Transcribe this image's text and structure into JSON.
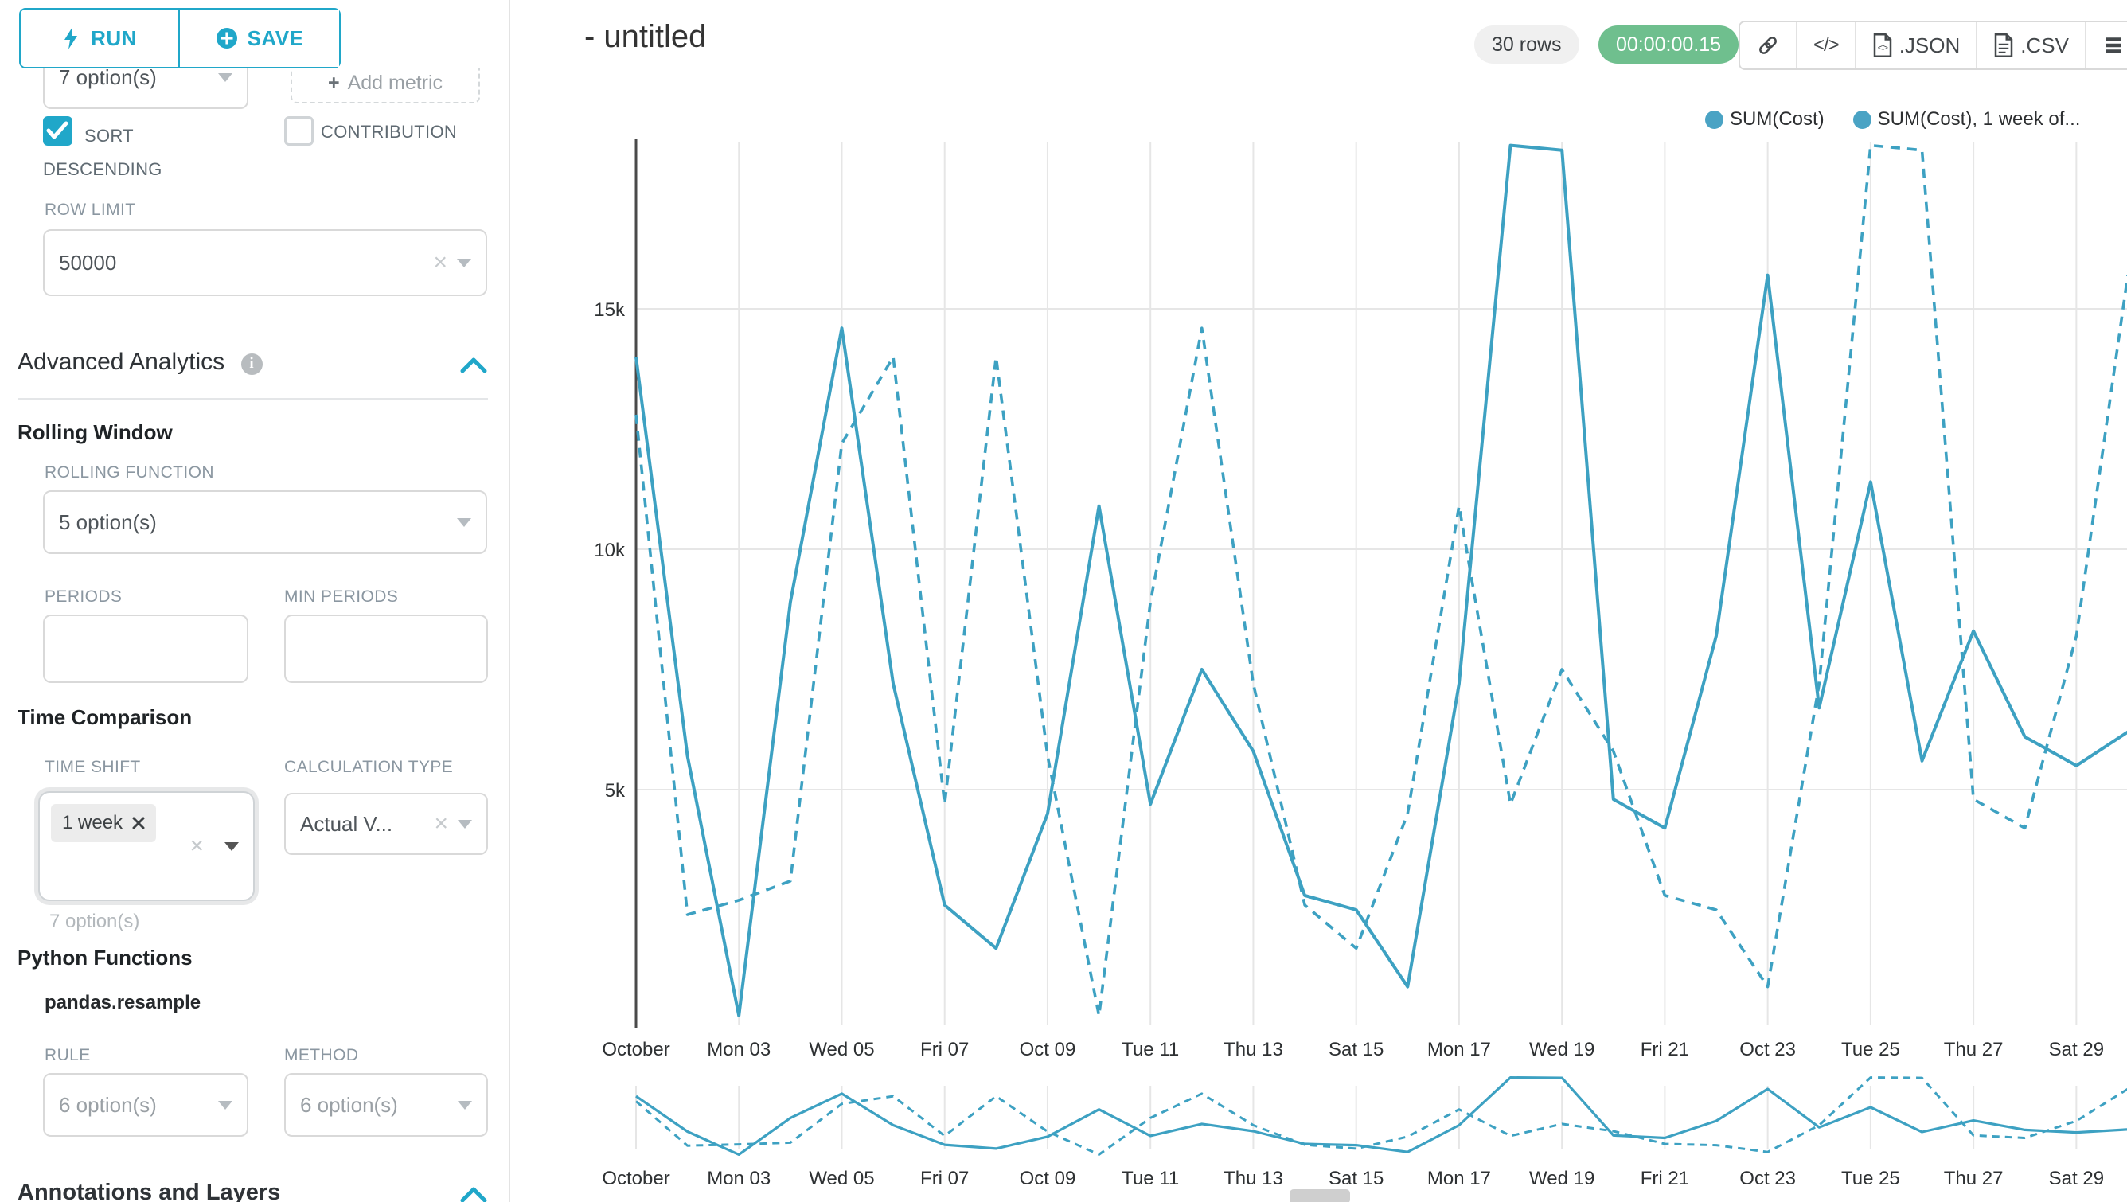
{
  "sidebar": {
    "run_label": "RUN",
    "save_label": "SAVE",
    "metric_select_value": "7 option(s)",
    "add_metric_label": "Add metric",
    "sort_descending_label": "SORT DESCENDING",
    "contribution_label": "CONTRIBUTION",
    "row_limit_label": "ROW LIMIT",
    "row_limit_value": "50000",
    "advanced_analytics_title": "Advanced Analytics",
    "rolling_window_title": "Rolling Window",
    "rolling_function_label": "ROLLING FUNCTION",
    "rolling_function_value": "5 option(s)",
    "periods_label": "PERIODS",
    "min_periods_label": "MIN PERIODS",
    "time_comparison_title": "Time Comparison",
    "time_shift_label": "TIME SHIFT",
    "time_shift_tag": "1 week",
    "time_shift_hint": "7 option(s)",
    "calculation_type_label": "CALCULATION TYPE",
    "calculation_type_value": "Actual V...",
    "python_functions_title": "Python Functions",
    "pandas_resample_label": "pandas.resample",
    "rule_label": "RULE",
    "rule_value": "6 option(s)",
    "method_label": "METHOD",
    "method_value": "6 option(s)",
    "annotations_title": "Annotations and Layers"
  },
  "header": {
    "title": "- untitled",
    "rows_badge": "30 rows",
    "timer_badge": "00:00:00.15",
    "json_label": ".JSON",
    "csv_label": ".CSV"
  },
  "colors": {
    "accent": "#20a7c9",
    "line": "#3da1c2",
    "legend_dot": "#4aa3c4",
    "success_badge": "#6fbf8e",
    "grid": "#e6e6e6",
    "axis": "#4a4a4a"
  },
  "chart_data": {
    "type": "line",
    "title": "- untitled",
    "x_tick_labels": [
      "October",
      "Mon 03",
      "Wed 05",
      "Fri 07",
      "Oct 09",
      "Tue 11",
      "Thu 13",
      "Sat 15",
      "Mon 17",
      "Wed 19",
      "Fri 21",
      "Oct 23",
      "Tue 25",
      "Thu 27",
      "Sat 29"
    ],
    "x_points_per_tick": 2,
    "y_ticks": [
      {
        "v": 5000,
        "label": "5k"
      },
      {
        "v": 10000,
        "label": "10k"
      },
      {
        "v": 15000,
        "label": "15k"
      }
    ],
    "ylim": [
      0,
      18500
    ],
    "grid": true,
    "legend_position": "top-right",
    "has_mini_preview": true,
    "series": [
      {
        "name": "SUM(Cost)",
        "legend_label": "SUM(Cost)",
        "style": "solid",
        "values": [
          14000,
          5700,
          300,
          8900,
          14600,
          7200,
          2600,
          1700,
          4500,
          10900,
          4700,
          7500,
          5800,
          2800,
          2500,
          900,
          7200,
          18400,
          18300,
          4800,
          4200,
          8200,
          15700,
          6700,
          11400,
          5600,
          8300,
          6100,
          5500,
          6200
        ]
      },
      {
        "name": "SUM(Cost), 1 week offset",
        "legend_label": "SUM(Cost), 1 week of...",
        "style": "dashed",
        "values": [
          12800,
          2400,
          2700,
          3100,
          12200,
          14000,
          4700,
          14000,
          5700,
          300,
          8900,
          14600,
          7200,
          2600,
          1700,
          4500,
          10900,
          4700,
          7500,
          5800,
          2800,
          2500,
          900,
          7200,
          18400,
          18300,
          4800,
          4200,
          8200,
          15700
        ]
      }
    ]
  }
}
